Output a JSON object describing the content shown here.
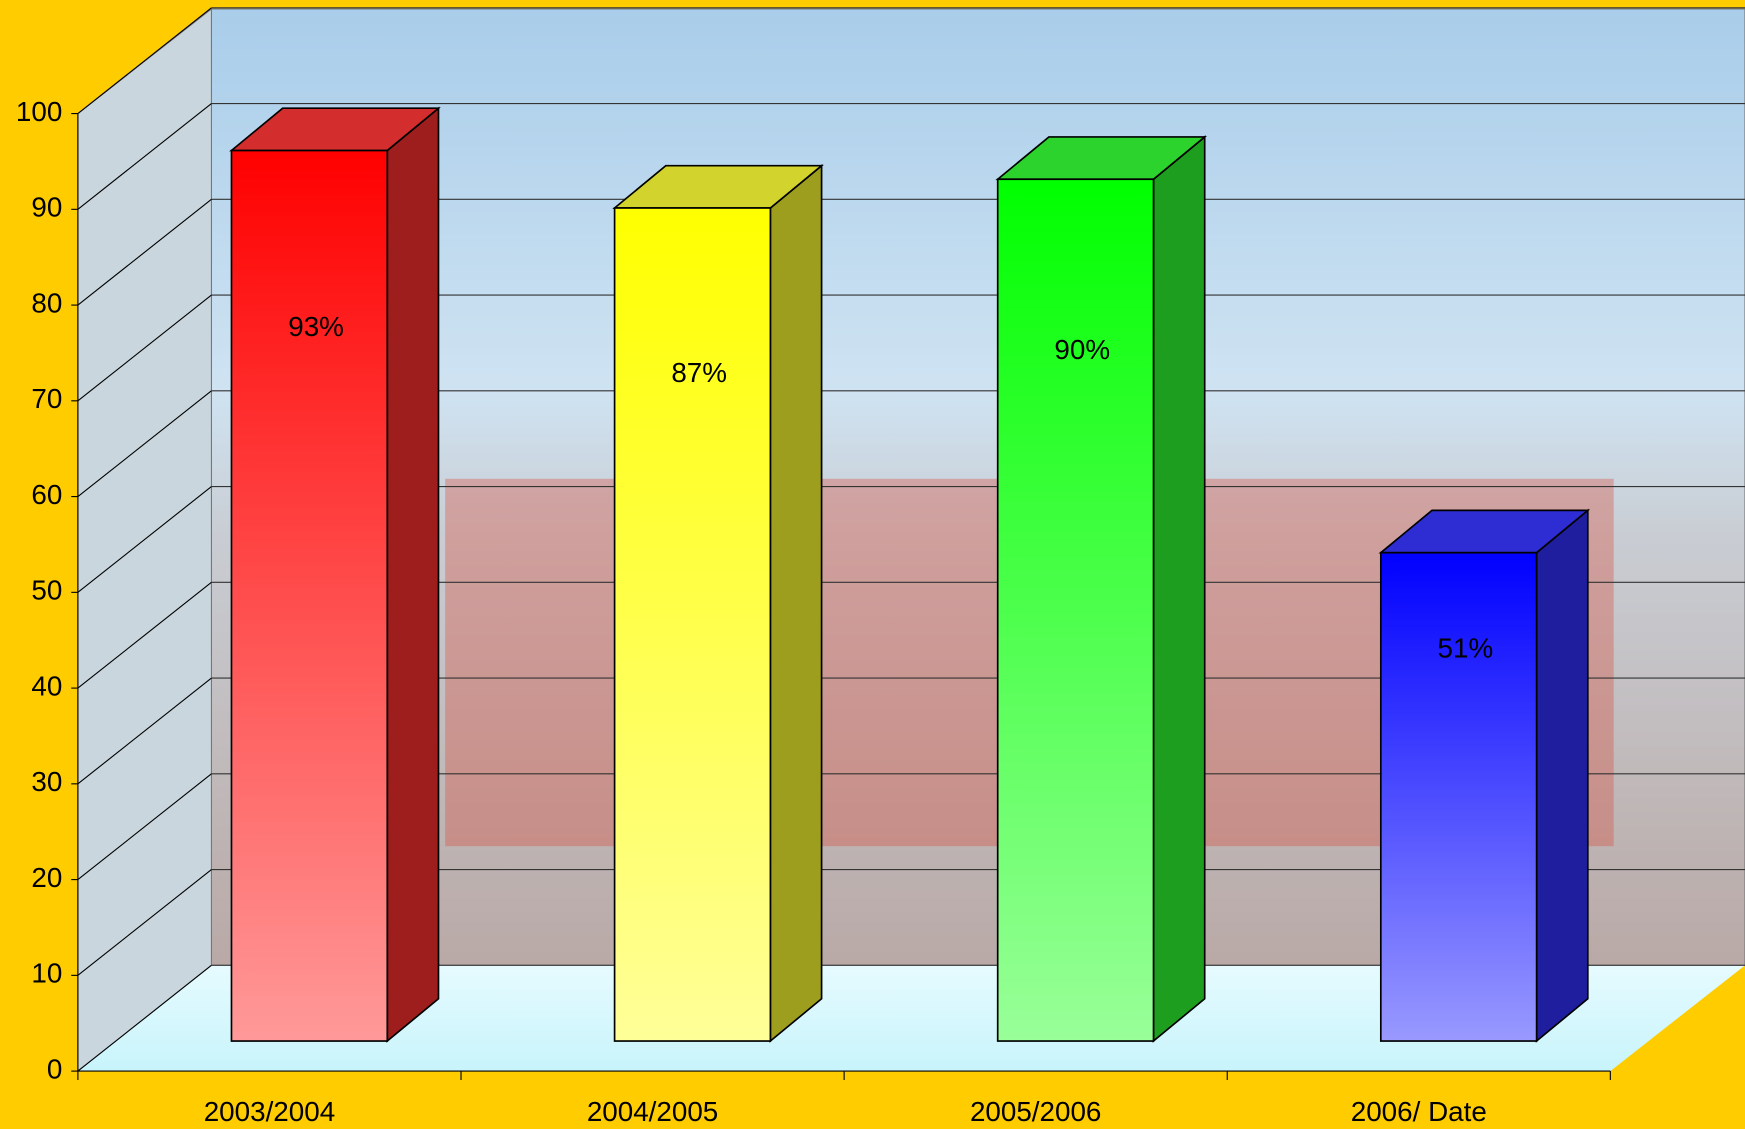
{
  "chart_data": {
    "type": "bar3d",
    "categories": [
      "2003/2004",
      "2004/2005",
      "2005/2006",
      "2006/ Date"
    ],
    "values": [
      93,
      87,
      90,
      51
    ],
    "value_labels": [
      "93%",
      "87%",
      "90%",
      "51%"
    ],
    "colors": [
      "#ff0000",
      "#ffff00",
      "#00ff00",
      "#0000ff"
    ],
    "ylim": [
      0,
      100
    ],
    "yticks": [
      0,
      10,
      20,
      30,
      40,
      50,
      60,
      70,
      80,
      90,
      100
    ],
    "grid": true
  }
}
